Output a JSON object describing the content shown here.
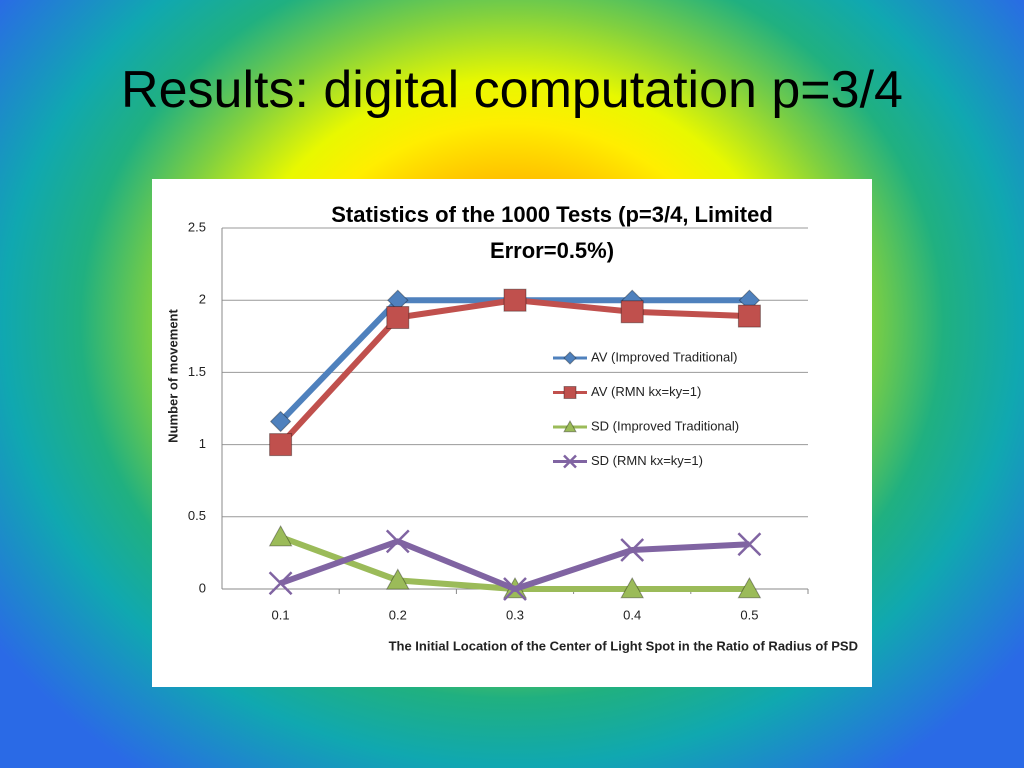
{
  "slide_title": "Results: digital computation p=3/4",
  "chart_data": {
    "type": "line",
    "title": "Statistics of  the 1000 Tests (p=3/4, Limited Error=0.5%)",
    "xlabel": "The Initial Location of the Center of Light Spot in the Ratio of Radius of PSD",
    "ylabel": "Number of movement",
    "categories": [
      "0.1",
      "0.2",
      "0.3",
      "0.4",
      "0.5"
    ],
    "series": [
      {
        "name": "AV (Improved Traditional)",
        "color": "#4f81bd",
        "marker": "diamond",
        "values": [
          1.16,
          2.0,
          2.0,
          2.0,
          2.0
        ]
      },
      {
        "name": "AV (RMN kx=ky=1)",
        "color": "#c0504d",
        "marker": "square",
        "values": [
          1.0,
          1.88,
          2.0,
          1.92,
          1.89
        ]
      },
      {
        "name": "SD (Improved Traditional)",
        "color": "#9bbb59",
        "marker": "triangle",
        "values": [
          0.36,
          0.06,
          0.0,
          0.0,
          0.0
        ]
      },
      {
        "name": "SD (RMN kx=ky=1)",
        "color": "#8064a2",
        "marker": "x",
        "values": [
          0.04,
          0.33,
          0.0,
          0.27,
          0.31
        ]
      }
    ],
    "ylim": [
      0,
      2.5
    ],
    "yticks": [
      0,
      0.5,
      1,
      1.5,
      2,
      2.5
    ],
    "grid": true,
    "legend": "right"
  }
}
